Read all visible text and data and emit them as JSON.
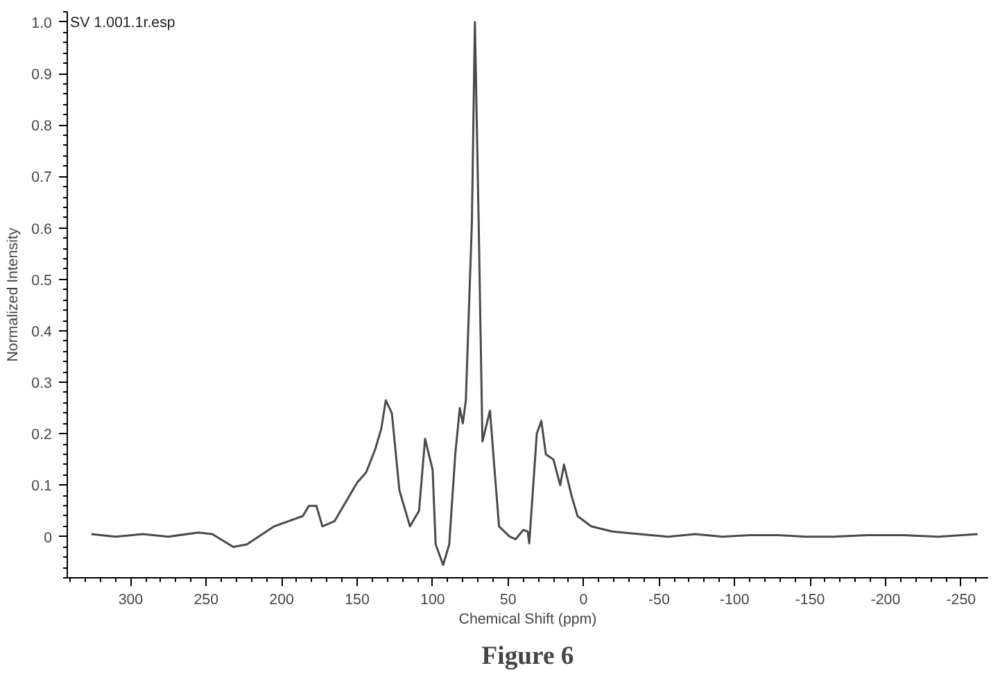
{
  "chart_data": {
    "type": "line",
    "xlabel": "Chemical Shift (ppm)",
    "ylabel": "Normalized Intensity",
    "annotations": [
      "SV 1.001.1r.esp",
      "Figure 6"
    ],
    "x": [
      326,
      310,
      292,
      275,
      255,
      246,
      232,
      223,
      205,
      186,
      182,
      177,
      173,
      165,
      156,
      150,
      144,
      138,
      134,
      131,
      127,
      122,
      115,
      109,
      105,
      100,
      98,
      93,
      89,
      85,
      82,
      80,
      78,
      74,
      72,
      69.5,
      67,
      62,
      59,
      56,
      49,
      45,
      40,
      37,
      36,
      31,
      28,
      25,
      20,
      15.5,
      13,
      8,
      4,
      -5,
      -19,
      -37,
      -56,
      -74,
      -92,
      -110,
      -129,
      -147,
      -165,
      -188,
      -211,
      -235,
      -261
    ],
    "series": [
      {
        "color": "#4a4a4a",
        "values": [
          0.005,
          0.0,
          0.005,
          0.0,
          0.008,
          0.005,
          -0.02,
          -0.015,
          0.02,
          0.04,
          0.06,
          0.06,
          0.02,
          0.03,
          0.075,
          0.105,
          0.125,
          0.17,
          0.21,
          0.265,
          0.24,
          0.09,
          0.02,
          0.05,
          0.19,
          0.13,
          -0.015,
          -0.055,
          -0.015,
          0.16,
          0.25,
          0.22,
          0.265,
          0.61,
          1.0,
          0.61,
          0.185,
          0.245,
          0.13,
          0.02,
          0.0,
          -0.005,
          0.013,
          0.01,
          -0.013,
          0.2,
          0.225,
          0.16,
          0.15,
          0.1,
          0.14,
          0.08,
          0.04,
          0.02,
          0.01,
          0.005,
          0.0,
          0.005,
          0.0,
          0.003,
          0.003,
          0.0,
          0.0,
          0.003,
          0.003,
          0.0,
          0.005
        ]
      }
    ],
    "xlim": [
      342,
      -268
    ],
    "xticks": [
      300,
      250,
      200,
      150,
      100,
      50,
      0,
      -50,
      -100,
      -150,
      -200,
      -250
    ],
    "ylim": [
      -0.08,
      1.02
    ],
    "yticks": [
      0,
      0.1,
      0.2,
      0.3,
      0.4,
      0.5,
      0.6,
      0.7,
      0.8,
      0.9,
      {
        "value": 1,
        "label": "1.0"
      }
    ],
    "grid": false,
    "marker": "none",
    "line_style": "solid"
  }
}
